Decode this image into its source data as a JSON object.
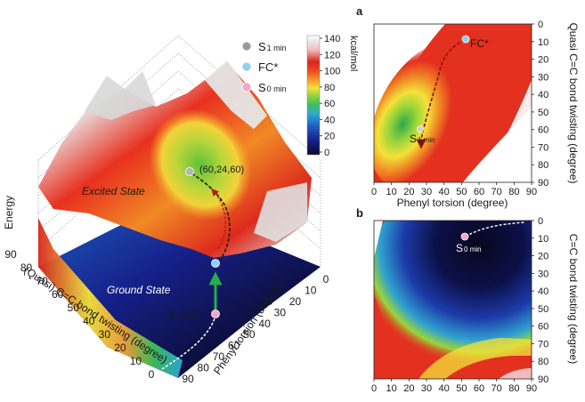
{
  "legend": {
    "items": [
      {
        "label": "S",
        "sub": "1 min",
        "color": "#9a9a9a"
      },
      {
        "label": "FC*",
        "sub": "",
        "color": "#8fd0ee"
      },
      {
        "label": "S",
        "sub": "0 min",
        "color": "#f2a6c8"
      }
    ]
  },
  "colorbar": {
    "unit": "kcal/mol",
    "ticks": [
      "140",
      "120",
      "100",
      "80",
      "60",
      "40",
      "20",
      "0"
    ],
    "colors": [
      "#0b0b2e",
      "#15208a",
      "#1f5fc0",
      "#2ea8d8",
      "#3fbf5a",
      "#9ad53a",
      "#f4e23a",
      "#f6a22b",
      "#ee4a22",
      "#d8261c",
      "#f3bcbc",
      "#e8e8e8",
      "#ffffff"
    ]
  },
  "surface3d": {
    "energy_label": "Energy",
    "excited_label": "Excited State",
    "ground_label": "Ground State",
    "point_excited": "(60,24,60)",
    "point_ground": "(8,50,0)",
    "left_axis_label": "(Quasi) C=C bond twisting (degree)",
    "left_ticks": [
      "90",
      "80",
      "70",
      "60",
      "50",
      "40",
      "30",
      "20",
      "10",
      "0"
    ],
    "right_axis_label": "Phenyl torsion (degree)",
    "right_ticks": [
      "0",
      "10",
      "20",
      "30",
      "40",
      "50",
      "60",
      "70",
      "80",
      "90"
    ]
  },
  "chart_data": [
    {
      "type": "heatmap",
      "panel": "a",
      "xlabel": "Phenyl torsion (degree)",
      "ylabel": "Quasi C=C bond twisting (degree)",
      "xticks": [
        "0",
        "10",
        "20",
        "30",
        "40",
        "50",
        "60",
        "70",
        "80",
        "90"
      ],
      "yticks": [
        "0",
        "10",
        "20",
        "30",
        "40",
        "50",
        "60",
        "70",
        "80",
        "90"
      ],
      "xlim": [
        0,
        90
      ],
      "ylim": [
        0,
        90
      ],
      "points": [
        {
          "label": "FC*",
          "x": 52,
          "y": 8
        },
        {
          "label": "S",
          "sub": "1 min",
          "x": 25,
          "y": 58
        }
      ]
    },
    {
      "type": "heatmap",
      "panel": "b",
      "xlabel": "Phenyl torsion (degree)",
      "ylabel": "C=C bond twisting (degree)",
      "xticks": [
        "0",
        "10",
        "20",
        "30",
        "40",
        "50",
        "60",
        "70",
        "80",
        "90"
      ],
      "yticks": [
        "0",
        "10",
        "20",
        "30",
        "40",
        "50",
        "60",
        "70",
        "80",
        "90"
      ],
      "xlim": [
        0,
        90
      ],
      "ylim": [
        0,
        90
      ],
      "points": [
        {
          "label": "S",
          "sub": "0 min",
          "x": 52,
          "y": 8
        }
      ]
    }
  ]
}
